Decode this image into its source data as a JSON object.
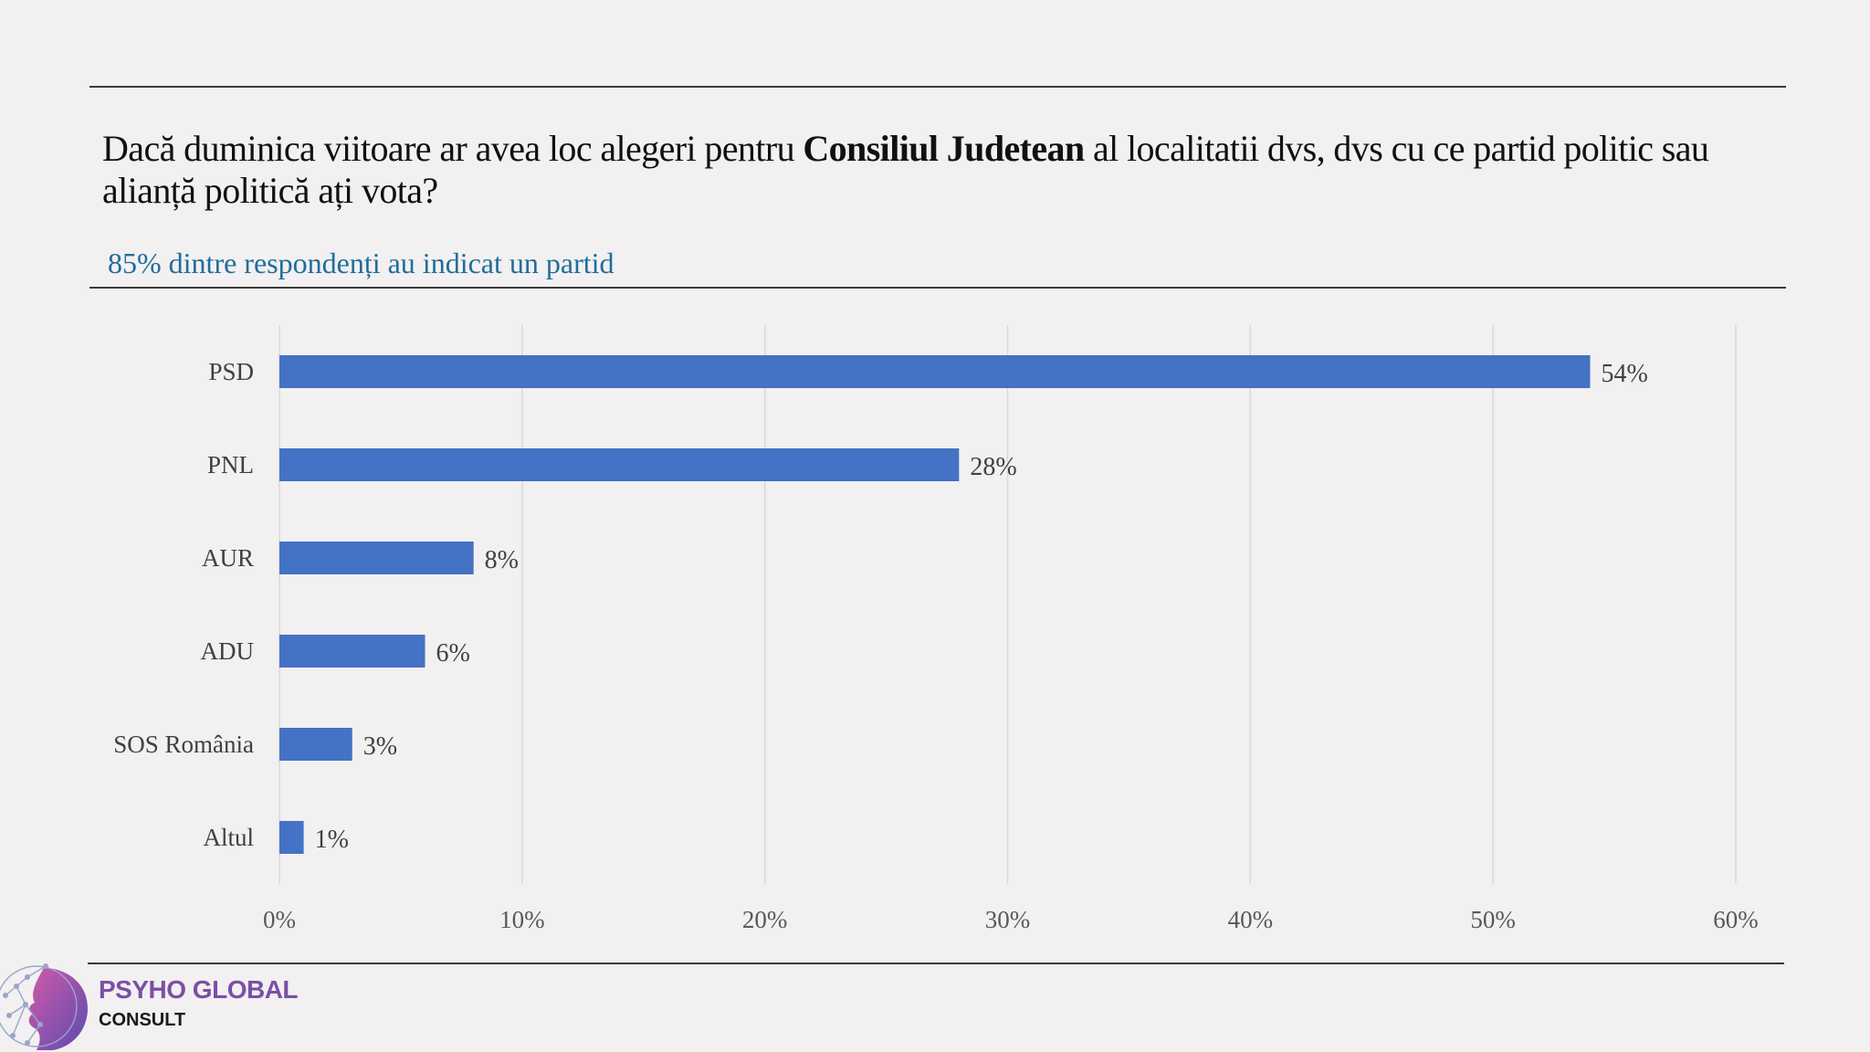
{
  "header": {
    "title_pre": "Dacă duminica viitoare ar avea loc alegeri pentru ",
    "title_bold": "Consiliul Judetean",
    "title_post": " al localitatii dvs, dvs cu ce partid politic sau alianță politică ați vota?",
    "subtitle": "85% dintre respondenți au indicat un partid"
  },
  "chart_data": {
    "type": "bar",
    "orientation": "horizontal",
    "categories": [
      "PSD",
      "PNL",
      "AUR",
      "ADU",
      "SOS România",
      "Altul"
    ],
    "values": [
      54,
      28,
      8,
      6,
      3,
      1
    ],
    "value_labels": [
      "54%",
      "28%",
      "8%",
      "6%",
      "3%",
      "1%"
    ],
    "xlim": [
      0,
      60
    ],
    "x_ticks": [
      "0%",
      "10%",
      "20%",
      "30%",
      "40%",
      "50%",
      "60%"
    ],
    "grid": "vertical",
    "legend": "none",
    "bar_color": "#4472c4"
  },
  "brand": {
    "name": "PSYHO GLOBAL",
    "sub": "CONSULT",
    "name_color": "#7b4fa6"
  }
}
